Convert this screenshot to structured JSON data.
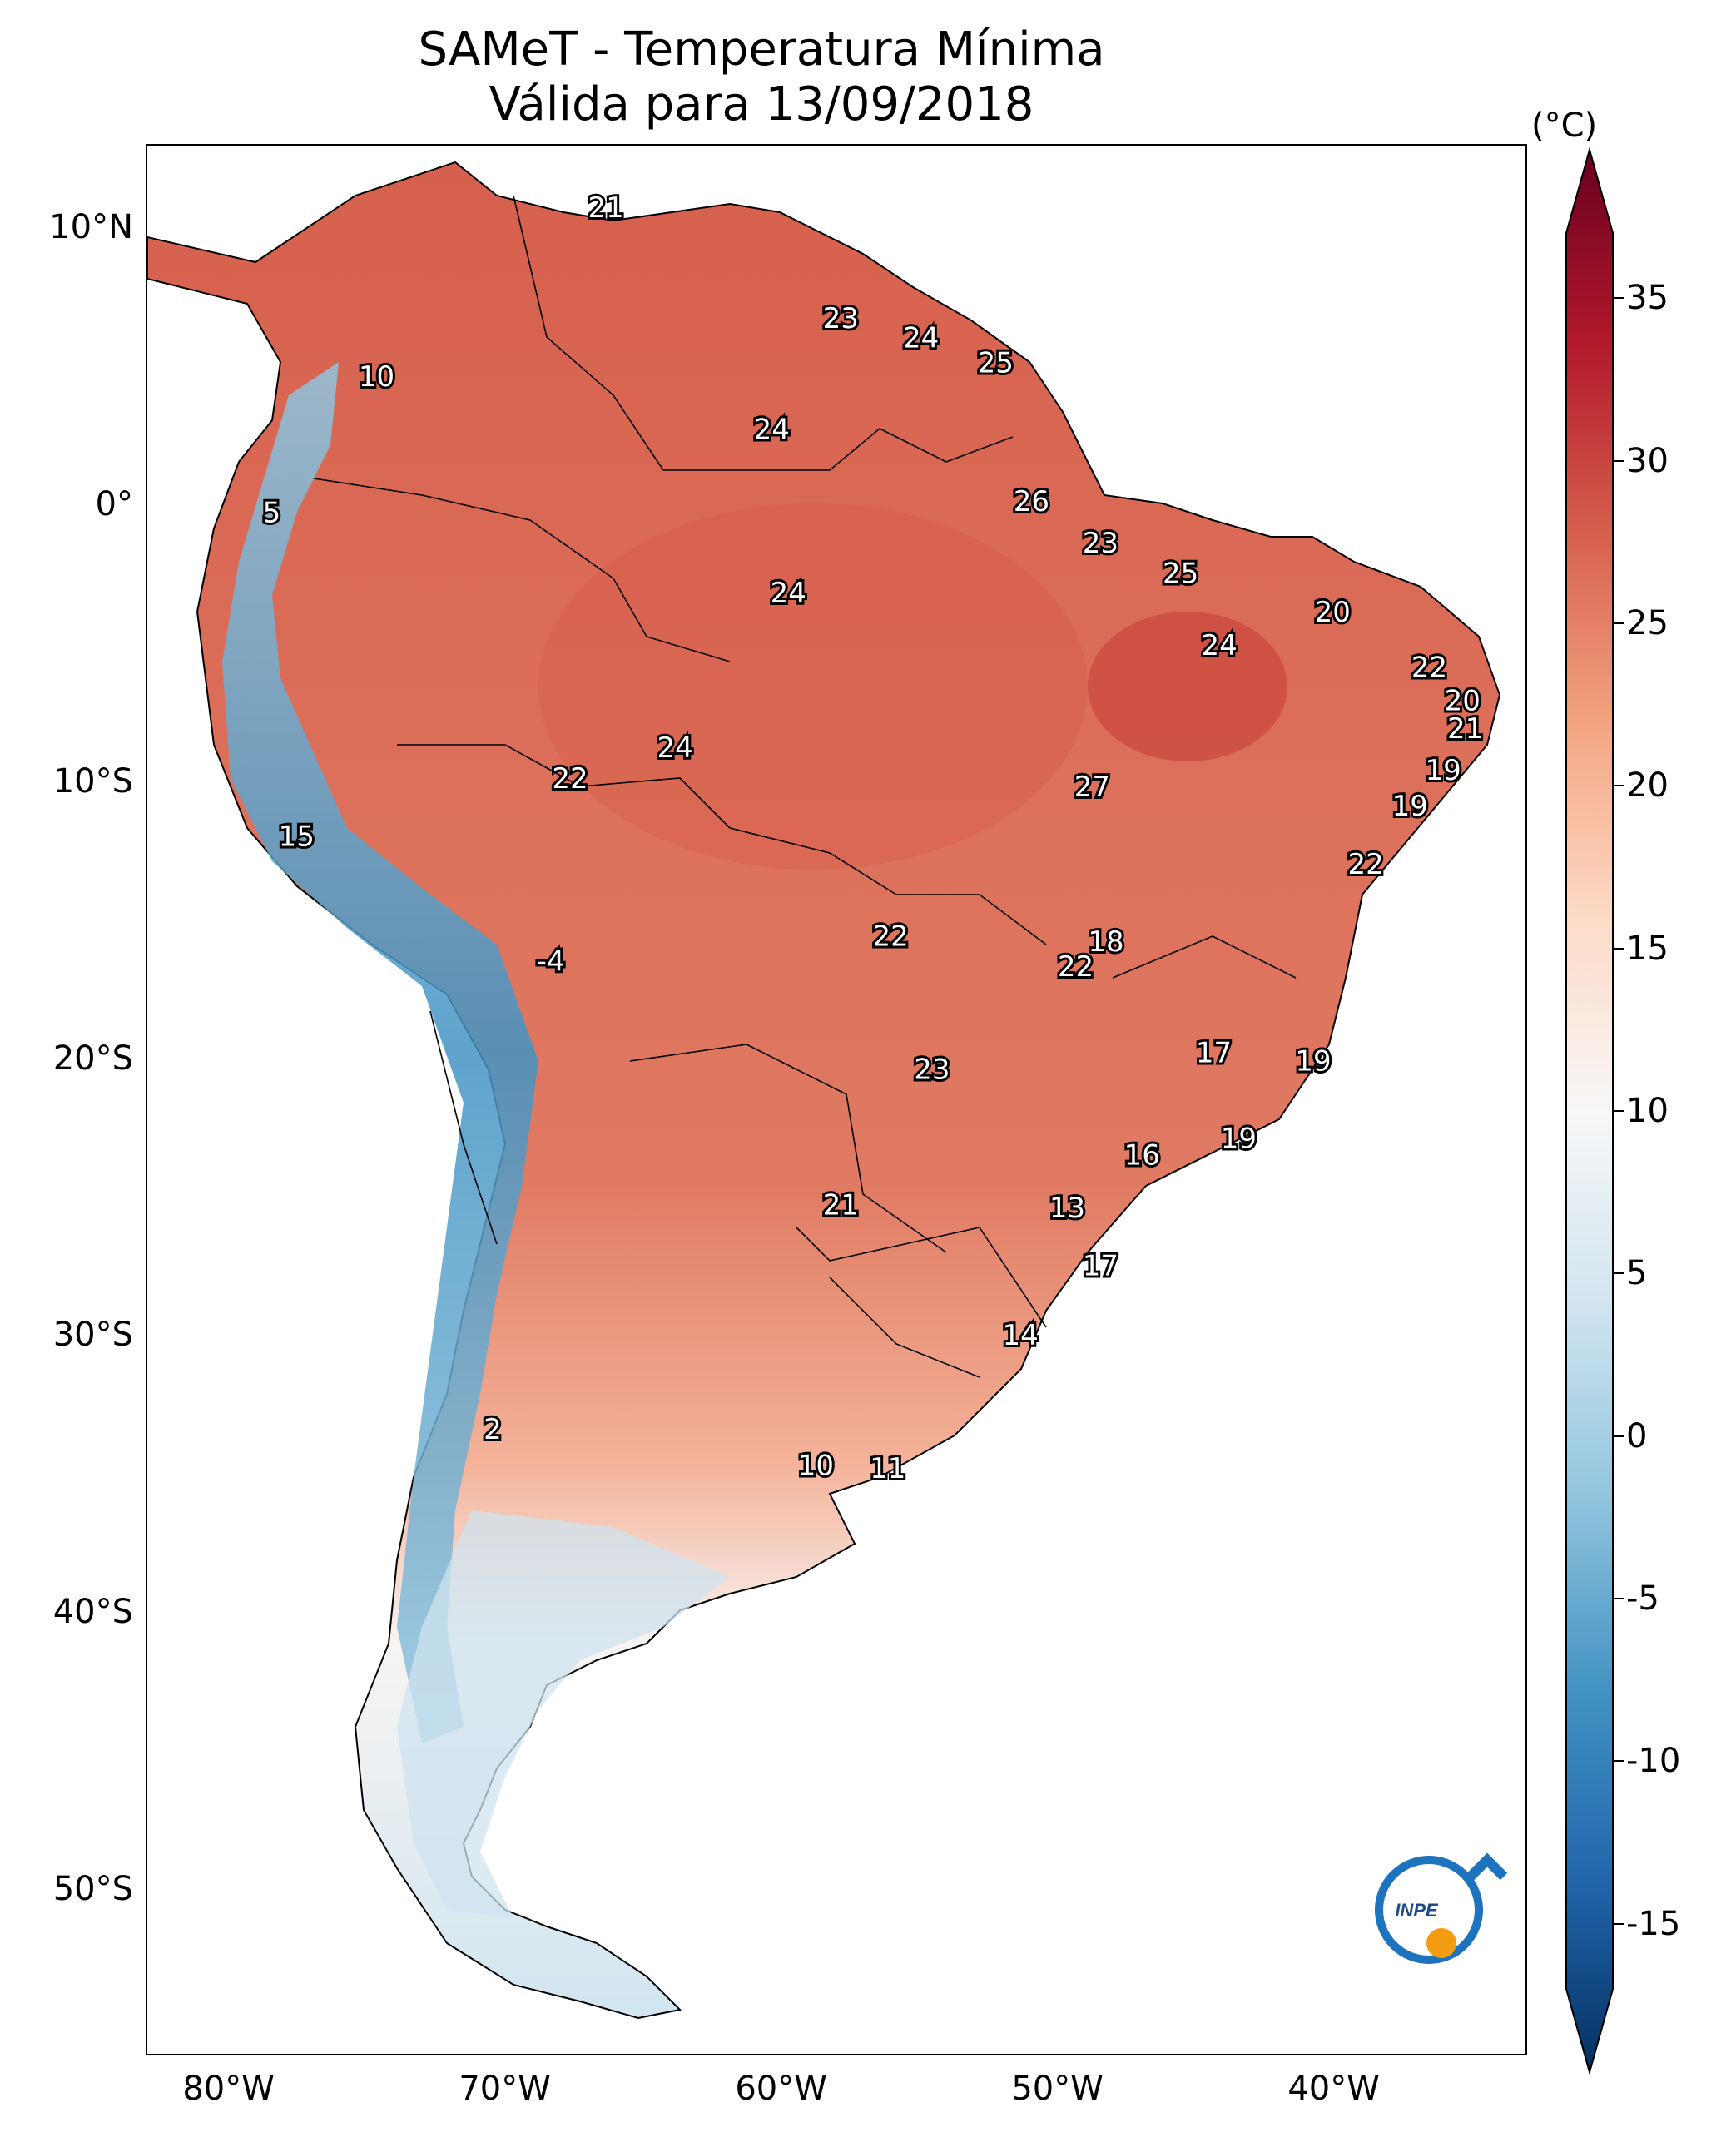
{
  "title": {
    "line1": "SAMeT - Temperatura Mínima",
    "line2": "Válida para 13/09/2018"
  },
  "map": {
    "lon_range": [
      -83,
      -33
    ],
    "lat_range": [
      -56,
      13
    ],
    "lat_ticks": [
      "10°N",
      "0°",
      "10°S",
      "20°S",
      "30°S",
      "40°S",
      "50°S"
    ],
    "lon_ticks": [
      "80°W",
      "70°W",
      "60°W",
      "50°W",
      "40°W"
    ],
    "ocean_color": "#ffffff",
    "border_color": "#000000",
    "stations": [
      {
        "label": "21",
        "lon": -66.4,
        "lat": 10.7
      },
      {
        "label": "10",
        "lon": -74.7,
        "lat": 4.6
      },
      {
        "label": "5",
        "lon": -78.5,
        "lat": -0.3
      },
      {
        "label": "23",
        "lon": -57.9,
        "lat": 6.7
      },
      {
        "label": "24",
        "lon": -55.0,
        "lat": 6.0
      },
      {
        "label": "25",
        "lon": -52.3,
        "lat": 5.1
      },
      {
        "label": "24",
        "lon": -60.4,
        "lat": 2.7
      },
      {
        "label": "26",
        "lon": -51.0,
        "lat": 0.1
      },
      {
        "label": "23",
        "lon": -48.5,
        "lat": -1.4
      },
      {
        "label": "24",
        "lon": -59.8,
        "lat": -3.2
      },
      {
        "label": "25",
        "lon": -45.6,
        "lat": -2.5
      },
      {
        "label": "20",
        "lon": -40.1,
        "lat": -3.9
      },
      {
        "label": "24",
        "lon": -44.2,
        "lat": -5.1
      },
      {
        "label": "22",
        "lon": -36.6,
        "lat": -5.9
      },
      {
        "label": "20",
        "lon": -35.4,
        "lat": -7.1
      },
      {
        "label": "21",
        "lon": -35.3,
        "lat": -8.1
      },
      {
        "label": "24",
        "lon": -63.9,
        "lat": -8.8
      },
      {
        "label": "22",
        "lon": -67.7,
        "lat": -9.9
      },
      {
        "label": "27",
        "lon": -48.8,
        "lat": -10.2
      },
      {
        "label": "19",
        "lon": -36.1,
        "lat": -9.6
      },
      {
        "label": "19",
        "lon": -37.3,
        "lat": -10.9
      },
      {
        "label": "15",
        "lon": -77.6,
        "lat": -12.0
      },
      {
        "label": "22",
        "lon": -38.9,
        "lat": -13.0
      },
      {
        "label": "-4",
        "lon": -68.4,
        "lat": -16.5
      },
      {
        "label": "18",
        "lon": -48.3,
        "lat": -15.8
      },
      {
        "label": "22",
        "lon": -56.1,
        "lat": -15.6
      },
      {
        "label": "22",
        "lon": -49.4,
        "lat": -16.7
      },
      {
        "label": "17",
        "lon": -44.4,
        "lat": -19.8
      },
      {
        "label": "19",
        "lon": -40.8,
        "lat": -20.1
      },
      {
        "label": "23",
        "lon": -54.6,
        "lat": -20.4
      },
      {
        "label": "16",
        "lon": -47.0,
        "lat": -23.5
      },
      {
        "label": "19",
        "lon": -43.5,
        "lat": -22.9
      },
      {
        "label": "21",
        "lon": -57.9,
        "lat": -25.3
      },
      {
        "label": "13",
        "lon": -49.7,
        "lat": -25.4
      },
      {
        "label": "17",
        "lon": -48.5,
        "lat": -27.5
      },
      {
        "label": "14",
        "lon": -51.4,
        "lat": -30.0
      },
      {
        "label": "2",
        "lon": -70.5,
        "lat": -33.4
      },
      {
        "label": "10",
        "lon": -58.8,
        "lat": -34.7
      },
      {
        "label": "11",
        "lon": -56.2,
        "lat": -34.8
      }
    ]
  },
  "colorbar": {
    "unit": "(°C)",
    "range": [
      -17,
      37
    ],
    "ticks": [
      "35",
      "30",
      "25",
      "20",
      "15",
      "10",
      "5",
      "0",
      "-5",
      "-10",
      "-15"
    ],
    "colors": [
      "#053061",
      "#2166ac",
      "#4393c3",
      "#92c5de",
      "#d1e5f0",
      "#f7f7f7",
      "#fddbc7",
      "#f4a582",
      "#d6604d",
      "#b2182b",
      "#67001f"
    ]
  },
  "logo": {
    "text": "INPE"
  }
}
